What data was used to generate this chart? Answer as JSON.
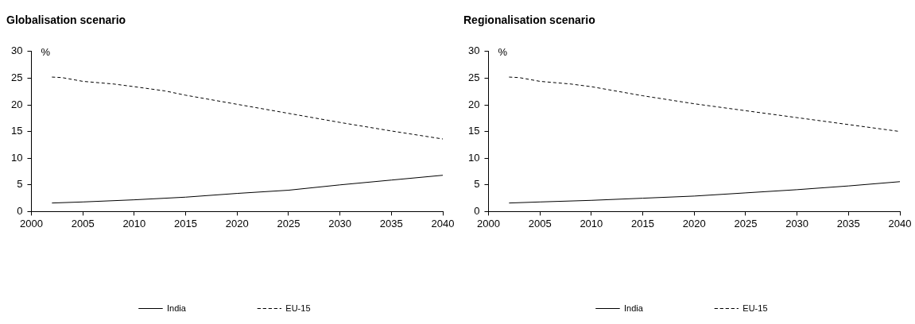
{
  "chart_data": [
    {
      "type": "line",
      "title": "Globalisation scenario",
      "ylabel": "%",
      "xlim": [
        2000,
        2040
      ],
      "xticks": [
        2000,
        2005,
        2010,
        2015,
        2020,
        2025,
        2030,
        2035,
        2040
      ],
      "ylim": [
        0,
        30
      ],
      "yticks": [
        0,
        5,
        10,
        15,
        20,
        25,
        30
      ],
      "grid": false,
      "legend": "bottom",
      "marker": "none",
      "series": [
        {
          "name": "India",
          "color": "#000000",
          "line_style": "solid",
          "x": [
            2002,
            2005,
            2010,
            2015,
            2020,
            2025,
            2030,
            2035,
            2040
          ],
          "values": [
            1.6,
            1.8,
            2.2,
            2.7,
            3.4,
            4.0,
            5.0,
            5.9,
            6.8
          ]
        },
        {
          "name": "EU-15",
          "color": "#000000",
          "line_style": "dashed",
          "x": [
            2002,
            2003,
            2005,
            2008,
            2010,
            2013,
            2015,
            2020,
            2025,
            2030,
            2035,
            2040
          ],
          "values": [
            25.2,
            25.1,
            24.4,
            23.9,
            23.4,
            22.6,
            21.8,
            20.1,
            18.4,
            16.7,
            15.1,
            13.6
          ]
        }
      ]
    },
    {
      "type": "line",
      "title": "Regionalisation scenario",
      "ylabel": "%",
      "xlim": [
        2000,
        2040
      ],
      "xticks": [
        2000,
        2005,
        2010,
        2015,
        2020,
        2025,
        2030,
        2035,
        2040
      ],
      "ylim": [
        0,
        30
      ],
      "yticks": [
        0,
        5,
        10,
        15,
        20,
        25,
        30
      ],
      "grid": false,
      "legend": "bottom",
      "marker": "none",
      "series": [
        {
          "name": "India",
          "color": "#000000",
          "line_style": "solid",
          "x": [
            2002,
            2005,
            2010,
            2015,
            2020,
            2025,
            2030,
            2035,
            2040
          ],
          "values": [
            1.6,
            1.8,
            2.1,
            2.5,
            2.9,
            3.5,
            4.1,
            4.8,
            5.6
          ]
        },
        {
          "name": "EU-15",
          "color": "#000000",
          "line_style": "dashed",
          "x": [
            2002,
            2003,
            2005,
            2008,
            2010,
            2015,
            2020,
            2025,
            2030,
            2035,
            2040
          ],
          "values": [
            25.2,
            25.1,
            24.4,
            23.9,
            23.4,
            21.7,
            20.2,
            18.9,
            17.6,
            16.3,
            15.0
          ]
        }
      ]
    }
  ]
}
